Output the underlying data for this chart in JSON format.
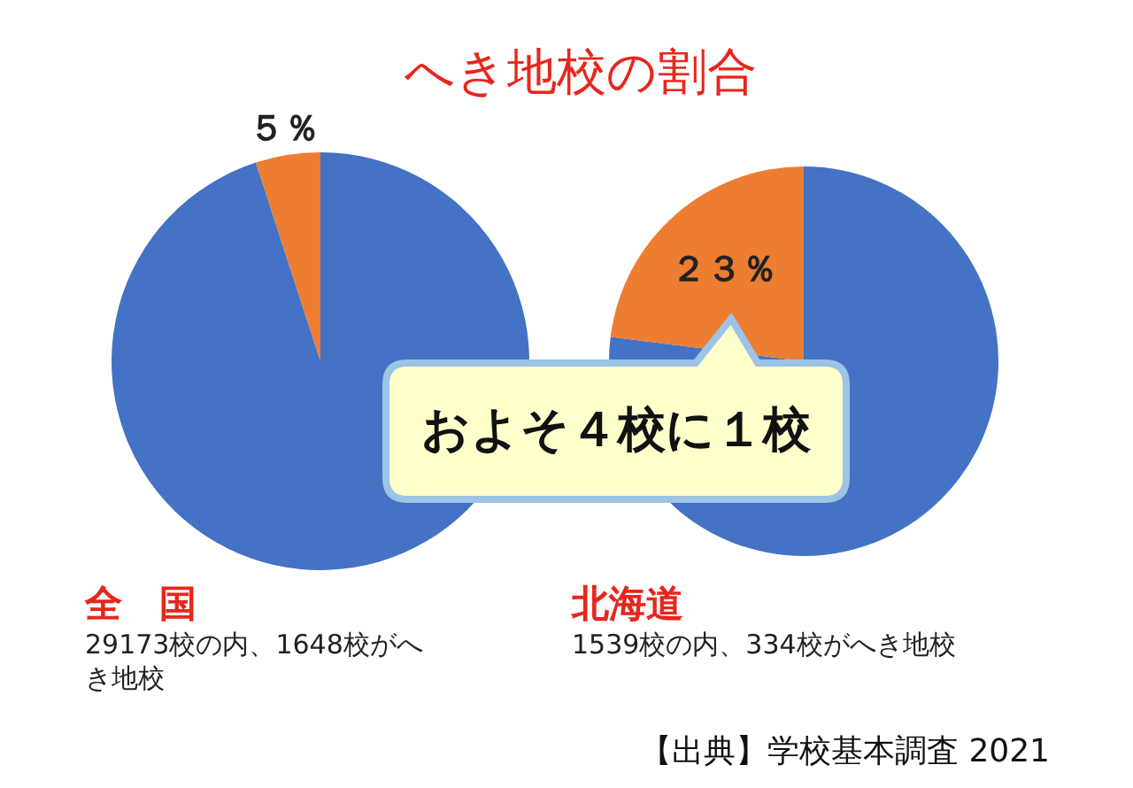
{
  "chart_data": [
    {
      "type": "pie",
      "title": "へき地校の割合",
      "xlabel": "全　国",
      "categories": [
        null,
        null
      ],
      "values": [
        95,
        5
      ],
      "colors": [
        "#4472c4",
        "#ed7d31"
      ],
      "value_labels": [
        null,
        "５％"
      ],
      "annotations": [
        "29173校の内、1648校がへき地校"
      ]
    },
    {
      "type": "pie",
      "xlabel": "北海道",
      "categories": [
        null,
        null
      ],
      "values": [
        77,
        23
      ],
      "colors": [
        "#4472c4",
        "#ed7d31"
      ],
      "value_labels": [
        null,
        "２３％"
      ],
      "annotations": [
        "1539校の内、334校がへき地校",
        "およそ４校に１校",
        "【出典】学校基本調査 2021"
      ]
    }
  ]
}
